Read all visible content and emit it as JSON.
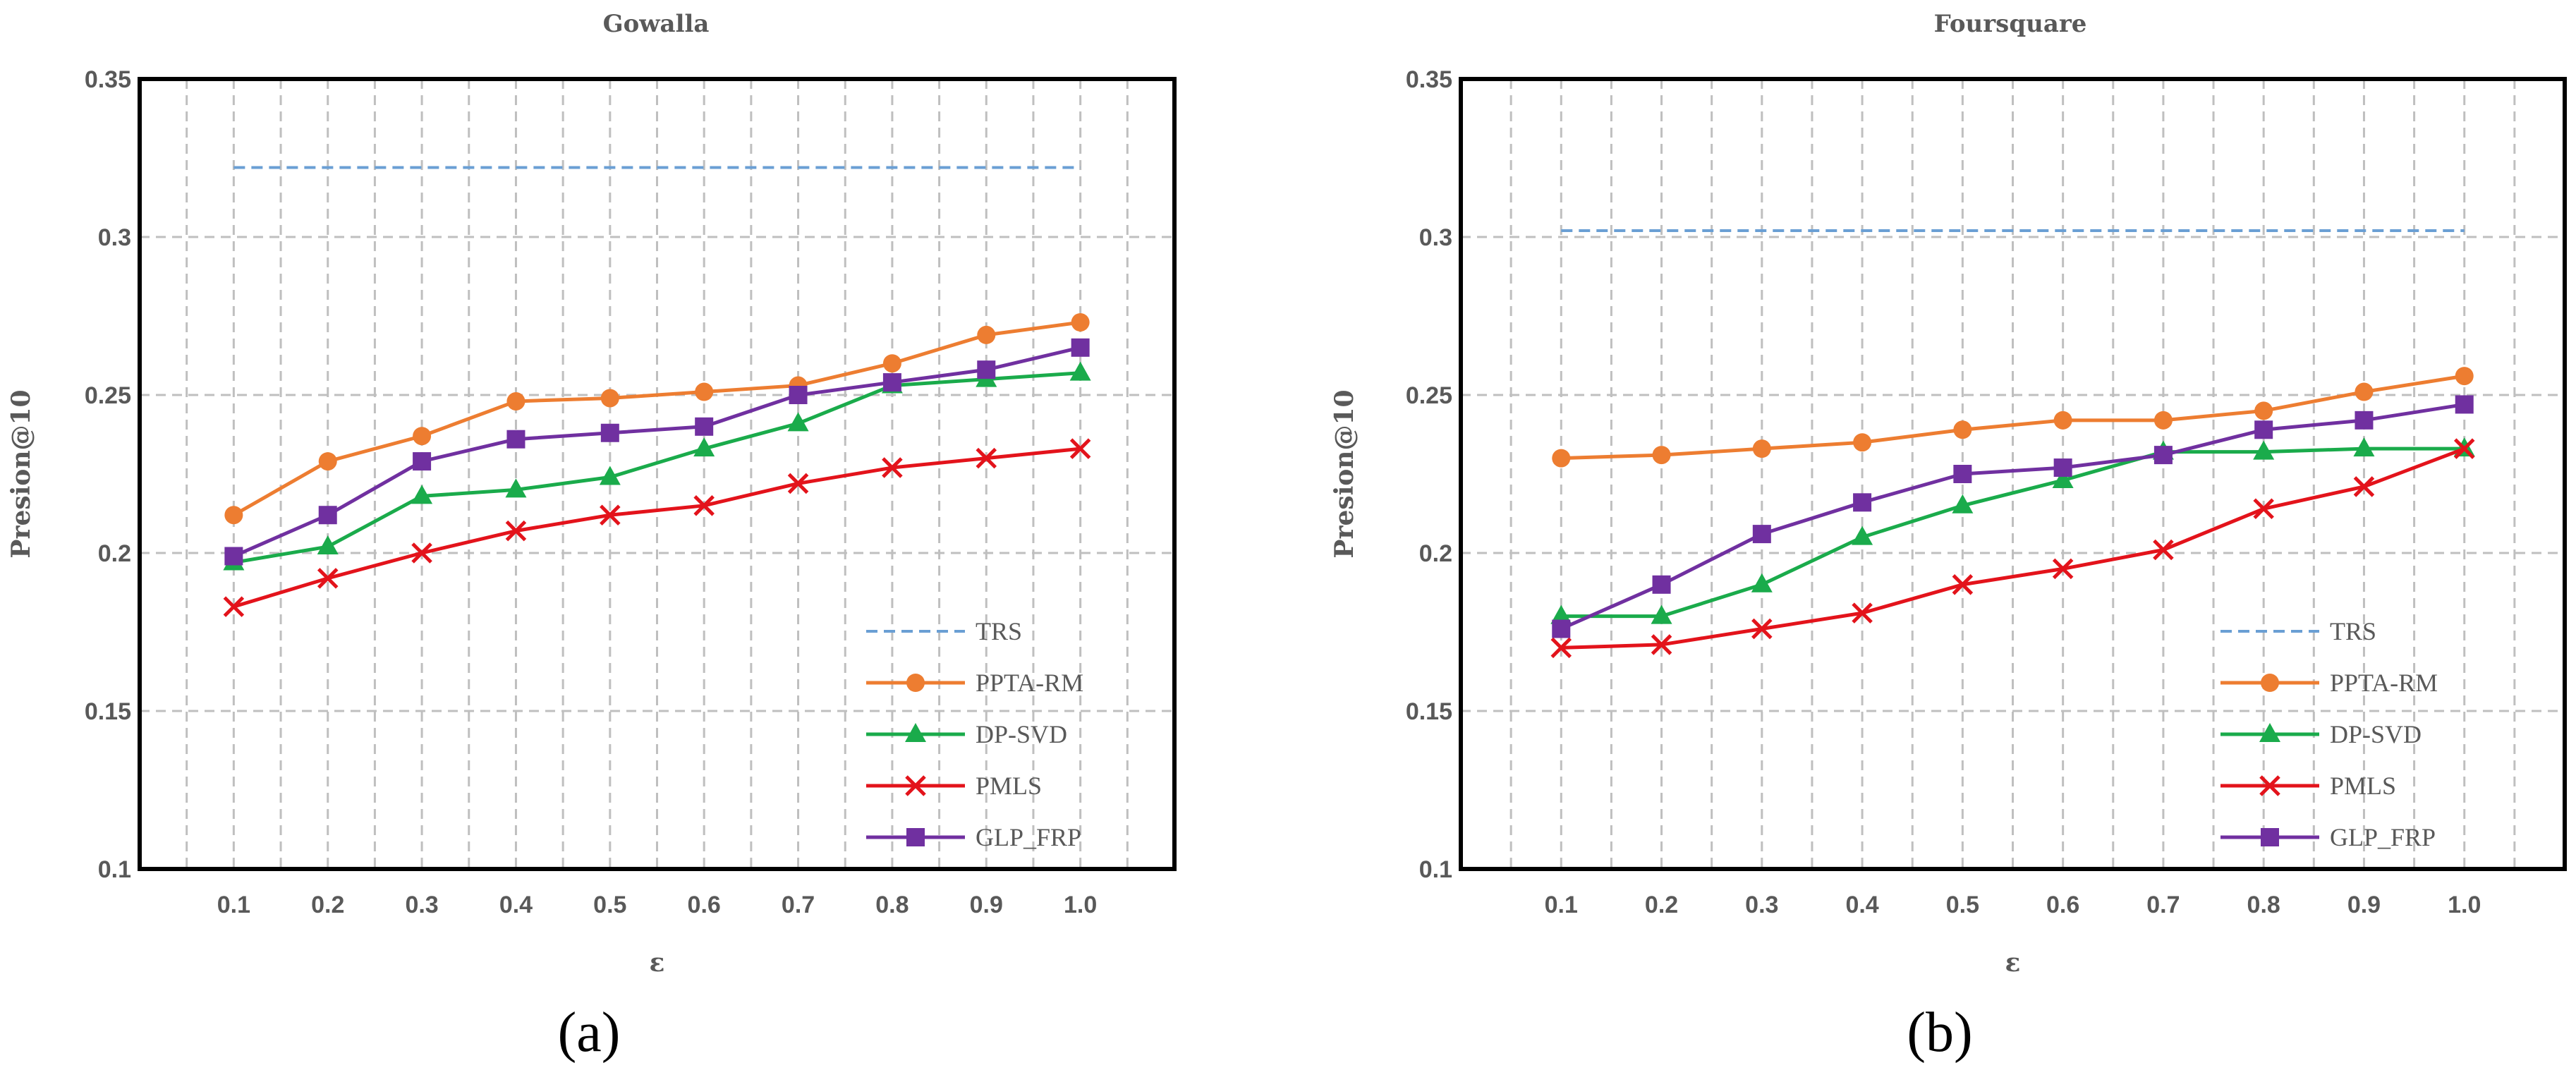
{
  "colors": {
    "TRS": "#6a9fd4",
    "PPTA-RM": "#ed7d31",
    "DP-SVD": "#1aab4b",
    "PMLS": "#e3131b",
    "GLP_FRP": "#7030a0",
    "grid": "#bfbfbf",
    "text": "#595959"
  },
  "chart_data": [
    {
      "type": "line",
      "panel_label": "(a)",
      "title": "Gowalla",
      "xlabel": "ε",
      "ylabel": "Presion@10",
      "ylim": [
        0.1,
        0.35
      ],
      "yticks": [
        "0.1",
        "0.15",
        "0.2",
        "0.25",
        "0.3",
        "0.35"
      ],
      "categories": [
        "0.1",
        "0.2",
        "0.3",
        "0.4",
        "0.5",
        "0.6",
        "0.7",
        "0.8",
        "0.9",
        "1.0"
      ],
      "grid": true,
      "legend_position": "bottom-right",
      "series": [
        {
          "name": "TRS",
          "marker": "none",
          "dashed": true,
          "values": [
            0.322,
            0.322,
            0.322,
            0.322,
            0.322,
            0.322,
            0.322,
            0.322,
            0.322,
            0.322
          ]
        },
        {
          "name": "PPTA-RM",
          "marker": "circle",
          "dashed": false,
          "values": [
            0.212,
            0.229,
            0.237,
            0.248,
            0.249,
            0.251,
            0.253,
            0.26,
            0.269,
            0.273
          ]
        },
        {
          "name": "DP-SVD",
          "marker": "triangle",
          "dashed": false,
          "values": [
            0.197,
            0.202,
            0.218,
            0.22,
            0.224,
            0.233,
            0.241,
            0.253,
            0.255,
            0.257
          ]
        },
        {
          "name": "PMLS",
          "marker": "x",
          "dashed": false,
          "values": [
            0.183,
            0.192,
            0.2,
            0.207,
            0.212,
            0.215,
            0.222,
            0.227,
            0.23,
            0.233
          ]
        },
        {
          "name": "GLP_FRP",
          "marker": "square",
          "dashed": false,
          "values": [
            0.199,
            0.212,
            0.229,
            0.236,
            0.238,
            0.24,
            0.25,
            0.254,
            0.258,
            0.265
          ]
        }
      ]
    },
    {
      "type": "line",
      "panel_label": "(b)",
      "title": "Foursquare",
      "xlabel": "ε",
      "ylabel": "Presion@10",
      "ylim": [
        0.1,
        0.35
      ],
      "yticks": [
        "0.1",
        "0.15",
        "0.2",
        "0.25",
        "0.3",
        "0.35"
      ],
      "categories": [
        "0.1",
        "0.2",
        "0.3",
        "0.4",
        "0.5",
        "0.6",
        "0.7",
        "0.8",
        "0.9",
        "1.0"
      ],
      "grid": true,
      "legend_position": "bottom-right",
      "series": [
        {
          "name": "TRS",
          "marker": "none",
          "dashed": true,
          "values": [
            0.302,
            0.302,
            0.302,
            0.302,
            0.302,
            0.302,
            0.302,
            0.302,
            0.302,
            0.302
          ]
        },
        {
          "name": "PPTA-RM",
          "marker": "circle",
          "dashed": false,
          "values": [
            0.23,
            0.231,
            0.233,
            0.235,
            0.239,
            0.242,
            0.242,
            0.245,
            0.251,
            0.256
          ]
        },
        {
          "name": "DP-SVD",
          "marker": "triangle",
          "dashed": false,
          "values": [
            0.18,
            0.18,
            0.19,
            0.205,
            0.215,
            0.223,
            0.232,
            0.232,
            0.233,
            0.233
          ]
        },
        {
          "name": "PMLS",
          "marker": "x",
          "dashed": false,
          "values": [
            0.17,
            0.171,
            0.176,
            0.181,
            0.19,
            0.195,
            0.201,
            0.214,
            0.221,
            0.233
          ]
        },
        {
          "name": "GLP_FRP",
          "marker": "square",
          "dashed": false,
          "values": [
            0.176,
            0.19,
            0.206,
            0.216,
            0.225,
            0.227,
            0.231,
            0.239,
            0.242,
            0.247
          ]
        }
      ]
    }
  ]
}
